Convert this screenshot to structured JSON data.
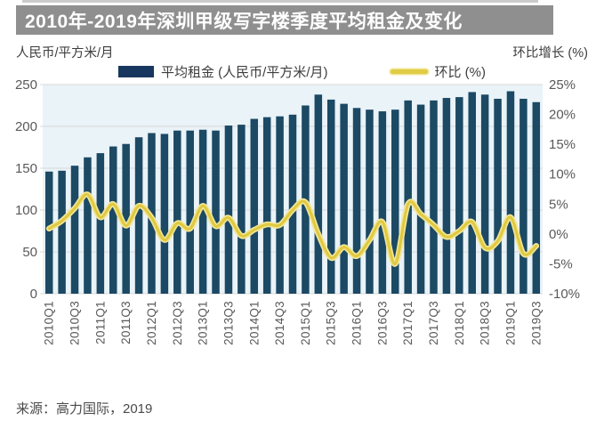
{
  "header": {
    "title": "2010年-2019年深圳甲级写字楼季度平均租金及变化"
  },
  "axes": {
    "left_unit": "人民币/平方米/月",
    "right_unit": "环比增长 (%)",
    "left_ticks": [
      "250",
      "200",
      "150",
      "100",
      "50",
      "0"
    ],
    "right_ticks": [
      "25%",
      "20%",
      "15%",
      "10%",
      "5%",
      "0%",
      "-5%",
      "-10%"
    ]
  },
  "legend": {
    "rent": "平均租金 (人民币/平方米/月)",
    "qoq": "环比 (%)"
  },
  "footer": {
    "source": "来源：高力国际，2019"
  },
  "colors": {
    "banner_bg": "#8f8f8f",
    "banner_text": "#ffffff",
    "bar": "#1c4964",
    "bar_legend": "#17375e",
    "line": "#dfc93f",
    "line_glow": "#f2e595",
    "plot_bg": "#e9f3f8",
    "grid": "#d9d9d9",
    "axis_text": "#595959"
  },
  "chart_data": {
    "type": "combo",
    "title": "2010年-2019年深圳甲级写字楼季度平均租金及变化",
    "categories": [
      "2010Q1",
      "2010Q2",
      "2010Q3",
      "2010Q4",
      "2011Q1",
      "2011Q2",
      "2011Q3",
      "2011Q4",
      "2012Q1",
      "2012Q2",
      "2012Q3",
      "2012Q4",
      "2013Q1",
      "2013Q2",
      "2013Q3",
      "2013Q4",
      "2014Q1",
      "2014Q2",
      "2014Q3",
      "2014Q4",
      "2015Q1",
      "2015Q2",
      "2015Q3",
      "2015Q4",
      "2016Q1",
      "2016Q2",
      "2016Q3",
      "2016Q4",
      "2017Q1",
      "2017Q2",
      "2017Q3",
      "2017Q4",
      "2018Q1",
      "2018Q2",
      "2018Q3",
      "2018Q4",
      "2019Q1",
      "2019Q2",
      "2019Q3"
    ],
    "x_tick_labels": [
      "2010Q1",
      "2010Q3",
      "2011Q1",
      "2011Q3",
      "2012Q1",
      "2012Q3",
      "2013Q1",
      "2013Q3",
      "2014Q1",
      "2014Q3",
      "2015Q1",
      "2015Q3",
      "2016Q1",
      "2016Q3",
      "2017Q1",
      "2017Q3",
      "2018Q1",
      "2018Q3",
      "2019Q1",
      "2019Q3"
    ],
    "series": [
      {
        "name": "平均租金 (人民币/平方米/月)",
        "type": "bar",
        "axis": "left",
        "values": [
          146,
          147,
          153,
          163,
          168,
          176,
          179,
          187,
          192,
          191,
          195,
          195,
          196,
          195,
          201,
          202,
          209,
          211,
          212,
          214,
          225,
          238,
          232,
          227,
          222,
          220,
          218,
          220,
          231,
          226,
          231,
          234,
          235,
          241,
          238,
          233,
          242,
          233,
          229
        ]
      },
      {
        "name": "环比 (%)",
        "type": "line",
        "axis": "right",
        "values": [
          0.9,
          2.2,
          4.3,
          6.6,
          2.8,
          5.0,
          1.4,
          4.7,
          2.7,
          -1.0,
          1.8,
          0.9,
          4.7,
          1.3,
          2.7,
          -0.3,
          0.7,
          1.6,
          1.5,
          4.0,
          5.3,
          0.0,
          -4.0,
          -2.2,
          -3.7,
          -1.0,
          2.0,
          -5.0,
          5.0,
          3.3,
          1.5,
          -0.5,
          0.5,
          2.0,
          -2.3,
          -1.2,
          2.8,
          -3.3,
          -2.0
        ]
      }
    ],
    "left_axis": {
      "label": "人民币/平方米/月",
      "min": 0,
      "max": 250,
      "step": 50
    },
    "right_axis": {
      "label": "环比增长 (%)",
      "min": -10,
      "max": 25,
      "step": 5
    },
    "legend_position": "top",
    "grid": "horizontal"
  }
}
